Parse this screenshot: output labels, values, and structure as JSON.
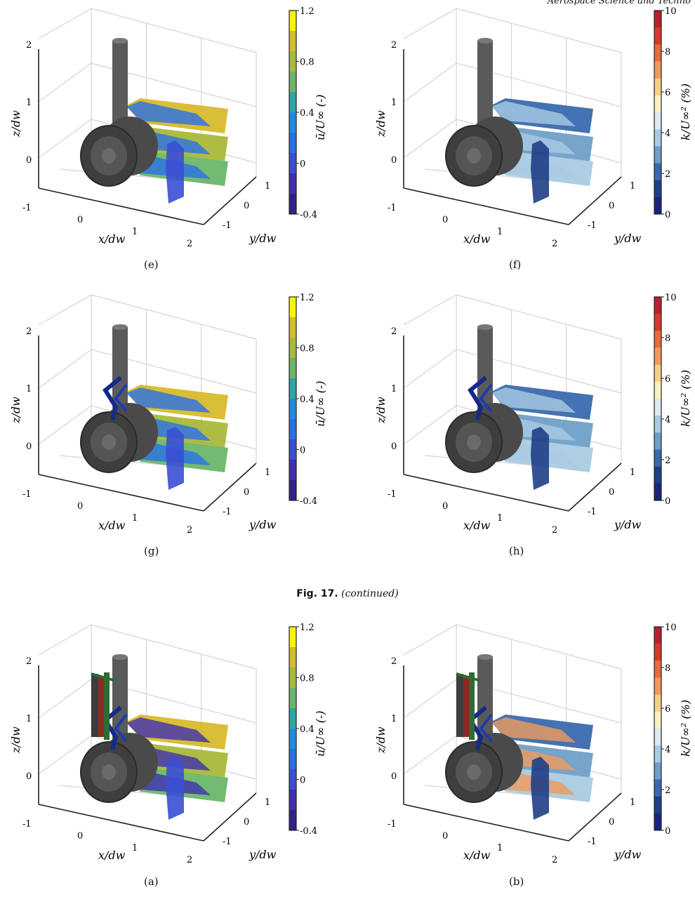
{
  "header": {
    "journal": "Aerospace Science and Techno"
  },
  "caption": {
    "fig": "Fig. 17.",
    "text": "(continued)"
  },
  "axes": {
    "x_label": "x/d_w",
    "y_label": "y/d_w",
    "z_label": "z/d_w",
    "x_ticks": [
      "-1",
      "0",
      "1",
      "2"
    ],
    "y_ticks": [
      "-1",
      "0",
      "1"
    ],
    "z_ticks": [
      "0",
      "1",
      "2"
    ]
  },
  "colorbars": {
    "velocity": {
      "label": "ū/U∞ (-)",
      "ticks": [
        "1.2",
        "0.8",
        "0.4",
        "0",
        "-0.4"
      ],
      "colors": [
        "#f8f20e",
        "#d8ba2c",
        "#a9b93a",
        "#6cb66a",
        "#2ca6a8",
        "#1e8de0",
        "#2970e6",
        "#3a4fd4",
        "#3f2fb0",
        "#35208a"
      ]
    },
    "tke": {
      "label": "k/U∞² (%)",
      "ticks": [
        "10",
        "8",
        "6",
        "4",
        "2",
        "0"
      ],
      "colors": [
        "#b5222d",
        "#d73a2c",
        "#e86b3d",
        "#f09a5c",
        "#f7cf86",
        "#fbf1c0",
        "#dbe9f0",
        "#a9cbe2",
        "#6f9fc8",
        "#3a6aae",
        "#1e3f86",
        "#1a237e"
      ]
    }
  },
  "panels": [
    {
      "id": "e",
      "label": "(e)",
      "kind": "velocity",
      "components": "wheel"
    },
    {
      "id": "f",
      "label": "(f)",
      "kind": "tke",
      "components": "wheel"
    },
    {
      "id": "g",
      "label": "(g)",
      "kind": "velocity",
      "components": "wheel-torque-link"
    },
    {
      "id": "h",
      "label": "(h)",
      "kind": "tke",
      "components": "wheel-torque-link"
    },
    {
      "id": "a",
      "label": "(a)",
      "kind": "velocity",
      "components": "full"
    },
    {
      "id": "b",
      "label": "(b)",
      "kind": "tke",
      "components": "full"
    }
  ]
}
